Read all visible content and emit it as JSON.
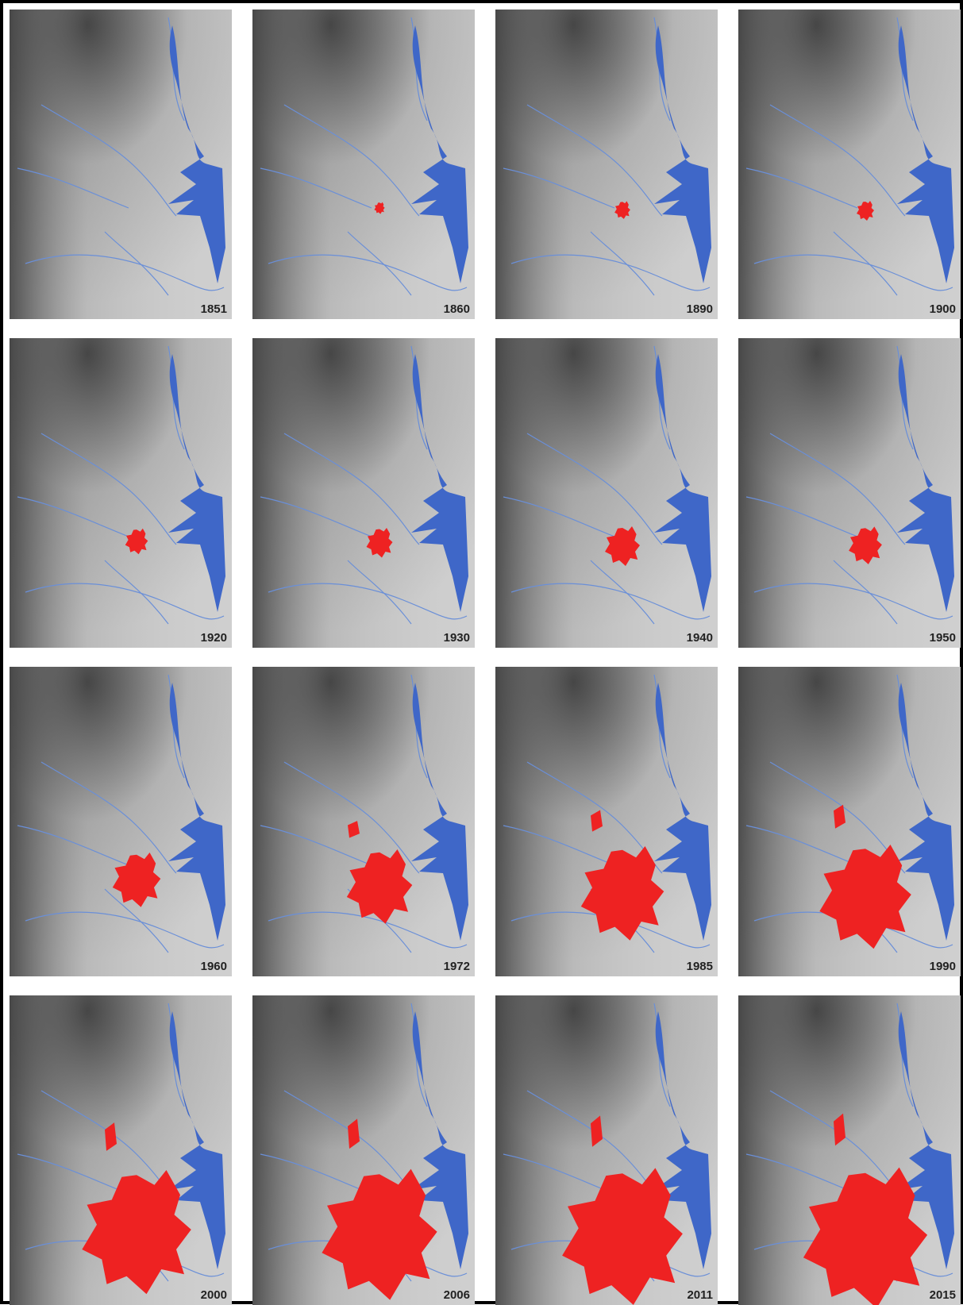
{
  "panels": [
    {
      "year": "1851"
    },
    {
      "year": "1860"
    },
    {
      "year": "1890"
    },
    {
      "year": "1900"
    },
    {
      "year": "1920"
    },
    {
      "year": "1930"
    },
    {
      "year": "1940"
    },
    {
      "year": "1950"
    },
    {
      "year": "1960"
    },
    {
      "year": "1972"
    },
    {
      "year": "1985"
    },
    {
      "year": "1990"
    },
    {
      "year": "2000"
    },
    {
      "year": "2006"
    },
    {
      "year": "2011"
    },
    {
      "year": "2015"
    }
  ]
}
